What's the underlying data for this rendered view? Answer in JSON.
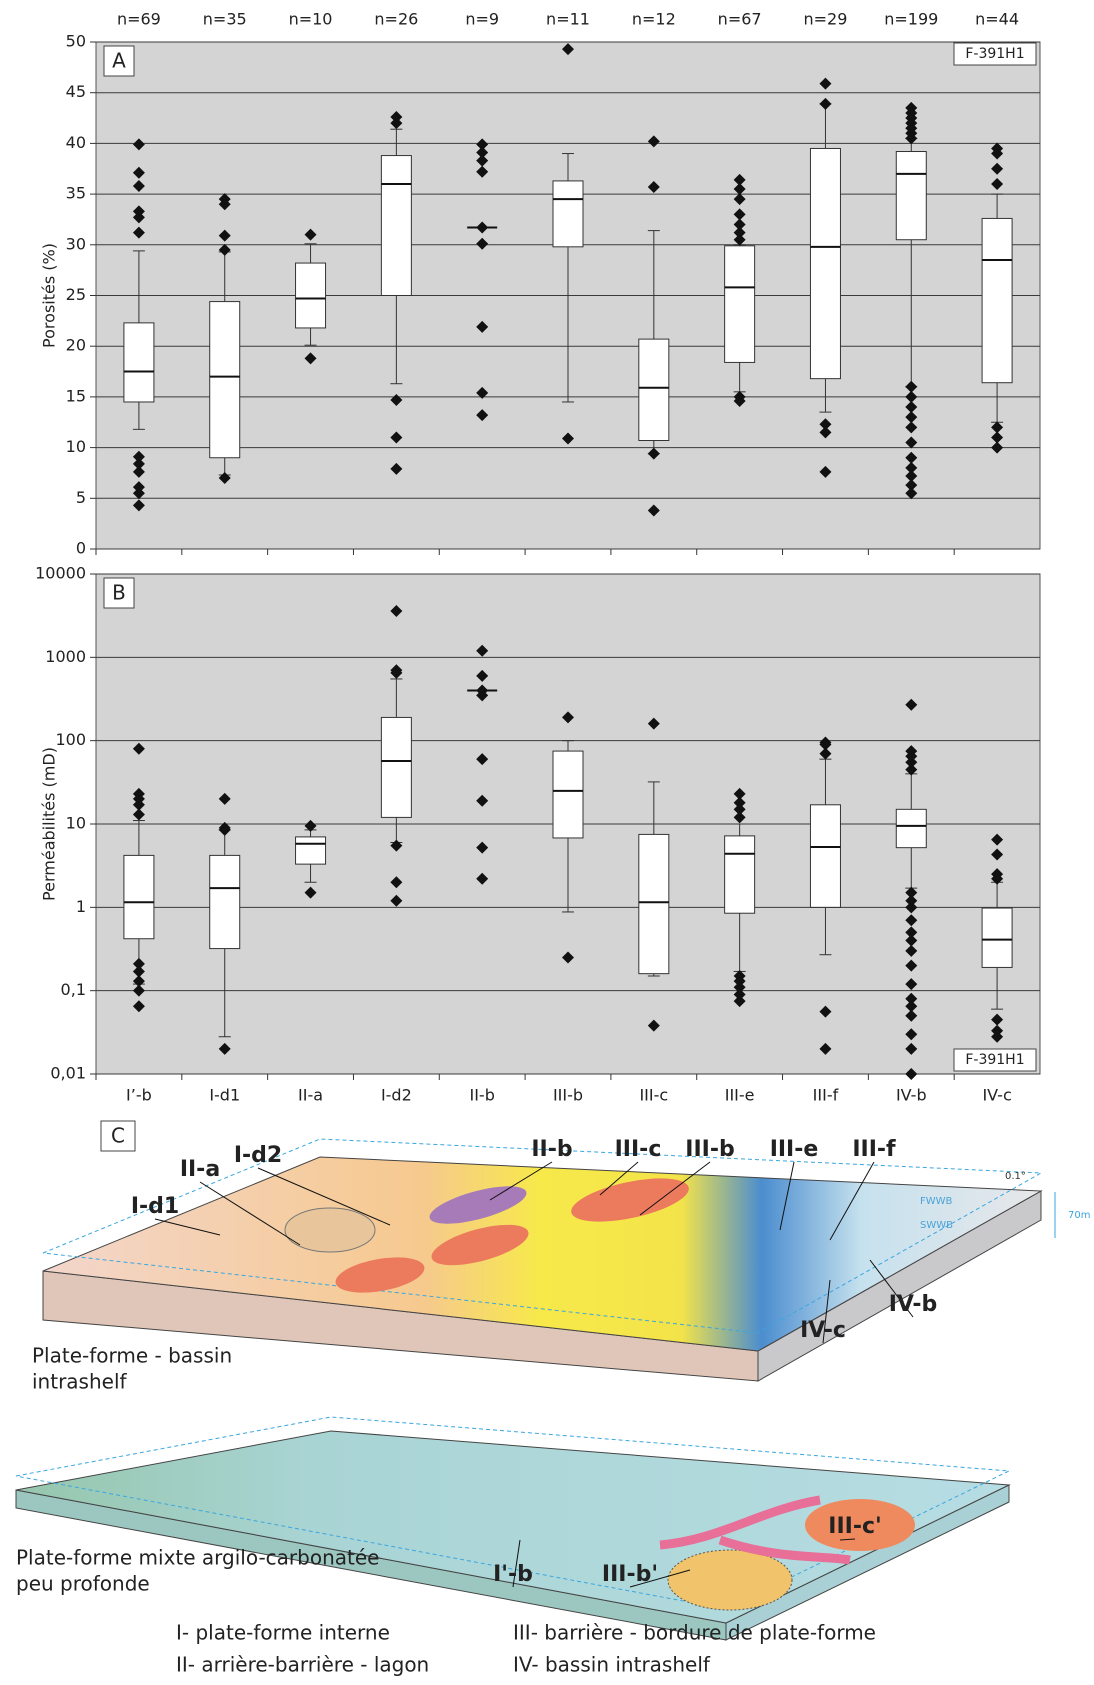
{
  "chart_data": [
    {
      "type": "box",
      "panel": "A",
      "well": "F-391H1",
      "ylabel": "Porosités (%)",
      "categories": [
        "n=69",
        "n=35",
        "n=10",
        "n=26",
        "n=9",
        "n=11",
        "n=12",
        "n=67",
        "n=29",
        "n=199",
        "n=44"
      ],
      "ylim": [
        0,
        50
      ],
      "yticks": [
        0,
        5,
        10,
        15,
        20,
        25,
        30,
        35,
        40,
        45,
        50
      ],
      "grid": true,
      "log": false,
      "boxes": [
        {
          "q1": 14.5,
          "median": 17.5,
          "q3": 22.3,
          "whislo": 11.8,
          "whishi": 29.4,
          "fliers": [
            4.3,
            5.5,
            6.1,
            7.6,
            8.4,
            9.1,
            31.2,
            32.7,
            33.3,
            35.8,
            37.1,
            39.9
          ]
        },
        {
          "q1": 9,
          "median": 17,
          "q3": 24.4,
          "whislo": 7.3,
          "whishi": 29.3,
          "fliers": [
            7,
            29.5,
            30.9,
            34,
            34.5
          ]
        },
        {
          "q1": 21.8,
          "median": 24.7,
          "q3": 28.2,
          "whislo": 20.1,
          "whishi": 30.1,
          "fliers": [
            18.8,
            31
          ]
        },
        {
          "q1": 25,
          "median": 36,
          "q3": 38.8,
          "whislo": 16.3,
          "whishi": 41.4,
          "fliers": [
            7.9,
            11,
            14.7,
            42,
            42.6
          ]
        },
        {
          "q1": null,
          "median": 31.7,
          "q3": null,
          "whislo": null,
          "whishi": null,
          "fliers": [
            13.2,
            15.4,
            21.9,
            30.1,
            31.7,
            37.2,
            38.3,
            39.1,
            39.9
          ]
        },
        {
          "q1": 29.8,
          "median": 34.5,
          "q3": 36.3,
          "whislo": 14.5,
          "whishi": 39,
          "fliers": [
            10.9,
            49.3
          ]
        },
        {
          "q1": 10.7,
          "median": 15.9,
          "q3": 20.7,
          "whislo": 9.4,
          "whishi": 31.4,
          "fliers": [
            3.8,
            9.4,
            35.7,
            40.2
          ]
        },
        {
          "q1": 18.4,
          "median": 25.8,
          "q3": 29.9,
          "whislo": 15.5,
          "whishi": 30,
          "fliers": [
            14.6,
            15,
            30.5,
            31.2,
            32,
            33,
            34.5,
            35.5,
            36.4
          ]
        },
        {
          "q1": 16.8,
          "median": 29.8,
          "q3": 39.5,
          "whislo": 13.5,
          "whishi": 43.9,
          "fliers": [
            7.6,
            11.5,
            12.3,
            43.9,
            45.9
          ]
        },
        {
          "q1": 30.5,
          "median": 37,
          "q3": 39.2,
          "whislo": 16,
          "whishi": 40.5,
          "fliers": [
            5.5,
            6.3,
            7.2,
            8,
            9,
            10.5,
            12,
            13,
            14,
            15,
            16,
            40.5,
            41,
            41.5,
            42,
            42.5,
            43,
            43.5
          ]
        },
        {
          "q1": 16.4,
          "median": 28.5,
          "q3": 32.6,
          "whislo": 12.5,
          "whishi": 35,
          "fliers": [
            10,
            11,
            12,
            36,
            37.5,
            39,
            39.5
          ]
        }
      ]
    },
    {
      "type": "box",
      "panel": "B",
      "well": "F-391H1",
      "ylabel": "Perméabilités (mD)",
      "categories": [
        "I’-b",
        "I-d1",
        "II-a",
        "I-d2",
        "II-b",
        "III-b",
        "III-c",
        "III-e",
        "III-f",
        "IV-b",
        "IV-c"
      ],
      "ylim": [
        0.01,
        10000
      ],
      "yticks": [
        {
          "value": 0.01,
          "label": "0,01"
        },
        {
          "value": 0.1,
          "label": "0,1"
        },
        1,
        10,
        100,
        1000,
        10000
      ],
      "grid": true,
      "log": true,
      "boxes": [
        {
          "q1": 0.42,
          "median": 1.15,
          "q3": 4.2,
          "whislo": 0.12,
          "whishi": 11,
          "fliers": [
            0.065,
            0.1,
            0.13,
            0.17,
            0.21,
            13,
            17,
            20,
            23,
            80
          ]
        },
        {
          "q1": 0.32,
          "median": 1.7,
          "q3": 4.2,
          "whislo": 0.028,
          "whishi": 8.5,
          "fliers": [
            0.02,
            8.5,
            9,
            20
          ]
        },
        {
          "q1": 3.3,
          "median": 5.8,
          "q3": 7,
          "whislo": 2,
          "whishi": 8.5,
          "fliers": [
            1.5,
            9.5
          ]
        },
        {
          "q1": 12,
          "median": 57,
          "q3": 190,
          "whislo": 6,
          "whishi": 550,
          "fliers": [
            1.2,
            2,
            5.5,
            650,
            700,
            3600
          ]
        },
        {
          "q1": null,
          "median": 400,
          "q3": null,
          "whislo": null,
          "whishi": null,
          "fliers": [
            2.2,
            5.2,
            19,
            60,
            350,
            400,
            600,
            1200
          ]
        },
        {
          "q1": 6.8,
          "median": 25,
          "q3": 75,
          "whislo": 0.88,
          "whishi": 100,
          "fliers": [
            0.25,
            190
          ]
        },
        {
          "q1": 0.16,
          "median": 1.15,
          "q3": 7.5,
          "whislo": 0.15,
          "whishi": 32,
          "fliers": [
            0.038,
            160
          ]
        },
        {
          "q1": 0.85,
          "median": 4.4,
          "q3": 7.2,
          "whislo": 0.17,
          "whishi": 10,
          "fliers": [
            0.075,
            0.09,
            0.11,
            0.13,
            0.15,
            12,
            15,
            18,
            23
          ]
        },
        {
          "q1": 1,
          "median": 5.3,
          "q3": 17,
          "whislo": 0.27,
          "whishi": 60,
          "fliers": [
            0.02,
            0.056,
            70,
            90,
            95
          ]
        },
        {
          "q1": 5.2,
          "median": 9.5,
          "q3": 15,
          "whislo": 1.7,
          "whishi": 40,
          "fliers": [
            0.01,
            0.02,
            0.03,
            0.05,
            0.065,
            0.08,
            0.12,
            0.2,
            0.3,
            0.4,
            0.5,
            0.7,
            1,
            1.2,
            1.5,
            45,
            55,
            65,
            75,
            270
          ]
        },
        {
          "q1": 0.19,
          "median": 0.41,
          "q3": 0.98,
          "whislo": 0.06,
          "whishi": 2,
          "fliers": [
            0.028,
            0.033,
            0.045,
            2.2,
            2.5,
            4.3,
            6.5
          ]
        }
      ]
    }
  ],
  "diagram": {
    "panel": "C",
    "labels": [
      "I-d1",
      "II-a",
      "I-d2",
      "II-b",
      "III-c",
      "III-b",
      "III-e",
      "III-f",
      "IV-b",
      "IV-c",
      "I'-b",
      "III-b'",
      "III-c'"
    ],
    "upper_caption": [
      "Plate-forme - bassin",
      "intrashelf"
    ],
    "lower_caption": [
      "Plate-forme mixte argilo-carbonatée",
      "peu profonde"
    ],
    "notes": [
      "0.1°",
      "70m",
      "FWWB",
      "SWWB"
    ]
  },
  "legend": [
    "I- plate-forme interne",
    "III- barrière - bordure de plate-forme",
    "II- arrière-barrière - lagon",
    "IV- bassin intrashelf"
  ]
}
